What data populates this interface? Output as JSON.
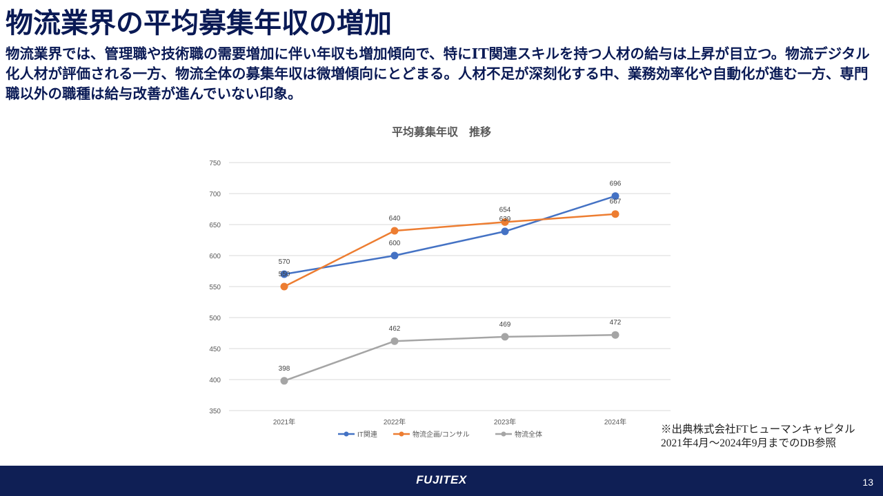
{
  "slide": {
    "title": "物流業界の平均募集年収の増加",
    "description": "物流業界では、管理職や技術職の需要増加に伴い年収も増加傾向で、特にIT関連スキルを持つ人材の給与は上昇が目立つ。物流デジタル化人材が評価される一方、物流全体の募集年収は微増傾向にとどまる。人材不足が深刻化する中、業務効率化や自動化が進む一方、専門職以外の職種は給与改善が進んでいない印象。",
    "source_line1": "※出典株式会社FTヒューマンキャピタル",
    "source_line2": "2021年4月～2024年9月までのDB参照"
  },
  "footer": {
    "logo": "FUJITEX",
    "page_number": "13"
  },
  "chart_data": {
    "type": "line",
    "title": "平均募集年収　推移",
    "categories": [
      "2021年",
      "2022年",
      "2023年",
      "2024年"
    ],
    "ylim": [
      350,
      750
    ],
    "yticks": [
      350,
      400,
      450,
      500,
      550,
      600,
      650,
      700,
      750
    ],
    "ytick_labels": [
      "350",
      "400",
      "450",
      "500",
      "550",
      "600",
      "650",
      "700",
      "750"
    ],
    "grid": true,
    "legend_position": "bottom",
    "series": [
      {
        "name": "IT関連",
        "color": "#4472c4",
        "values": [
          570,
          600,
          639,
          696
        ],
        "labels": [
          "570",
          "600",
          "639",
          "696"
        ]
      },
      {
        "name": "物流企画/コンサル",
        "color": "#ed7d31",
        "values": [
          550,
          640,
          654,
          667
        ],
        "labels": [
          "550",
          "640",
          "654",
          "667"
        ]
      },
      {
        "name": "物流全体",
        "color": "#a5a5a5",
        "values": [
          398,
          462,
          469,
          472
        ],
        "labels": [
          "398",
          "462",
          "469",
          "472"
        ]
      }
    ]
  }
}
